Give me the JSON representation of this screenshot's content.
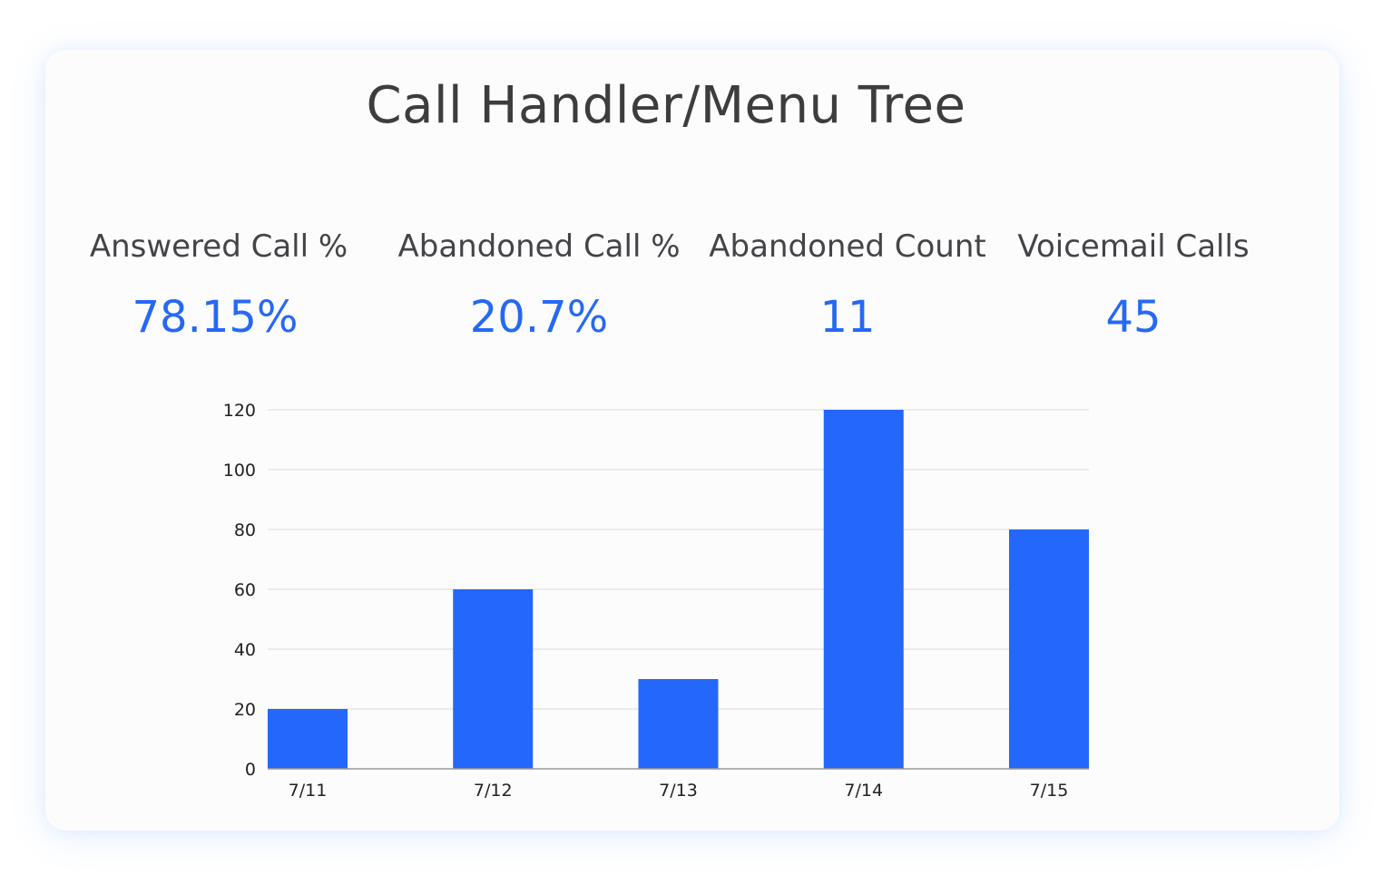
{
  "title": "Call Handler/Menu Tree",
  "kpis": [
    {
      "label": "Answered Call %",
      "value": "78.15%"
    },
    {
      "label": "Abandoned Call %",
      "value": "20.7%"
    },
    {
      "label": "Abandoned Count",
      "value": "11"
    },
    {
      "label": "Voicemail Calls",
      "value": "45"
    }
  ],
  "colors": {
    "accent": "#2668f6",
    "bar": "#2467fb",
    "grid": "#dcdcdc",
    "title": "#3d3d3f"
  },
  "chart_data": {
    "type": "bar",
    "categories": [
      "7/11",
      "7/12",
      "7/13",
      "7/14",
      "7/15"
    ],
    "values": [
      20,
      60,
      30,
      120,
      80
    ],
    "yticks": [
      0,
      20,
      40,
      60,
      80,
      100,
      120
    ],
    "ylim": [
      0,
      120
    ],
    "grid": true,
    "legend": "none"
  }
}
